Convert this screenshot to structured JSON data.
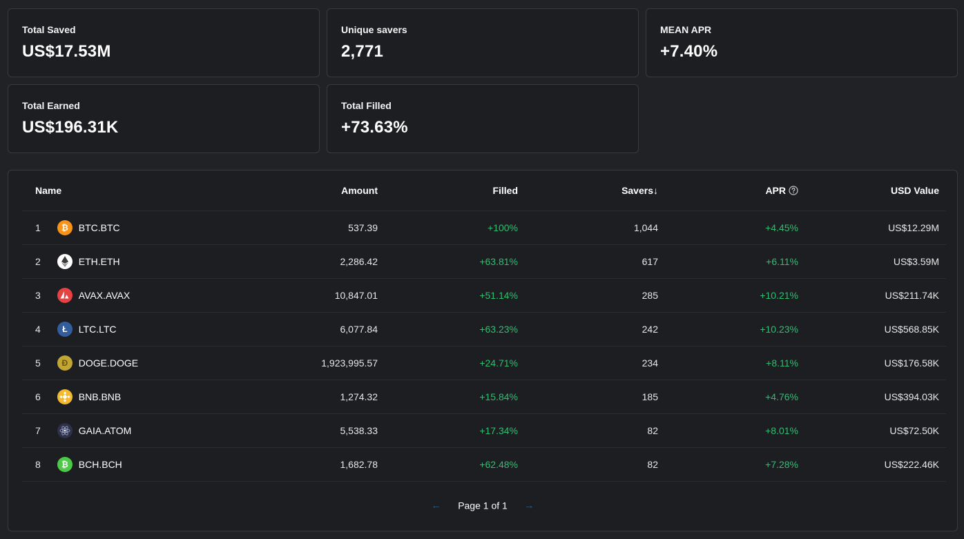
{
  "stats": {
    "total_saved": {
      "label": "Total Saved",
      "value": "US$17.53M"
    },
    "unique_savers": {
      "label": "Unique savers",
      "value": "2,771"
    },
    "mean_apr": {
      "label": "MEAN APR",
      "value": "+7.40%"
    },
    "total_earned": {
      "label": "Total Earned",
      "value": "US$196.31K"
    },
    "total_filled": {
      "label": "Total Filled",
      "value": "+73.63%"
    }
  },
  "table": {
    "headers": {
      "name": "Name",
      "amount": "Amount",
      "filled": "Filled",
      "savers": "Savers↓",
      "apr": "APR",
      "usd_value": "USD Value"
    },
    "rows": [
      {
        "rank": "1",
        "icon": "btc-icon",
        "name": "BTC.BTC",
        "amount": "537.39",
        "filled": "+100%",
        "savers": "1,044",
        "apr": "+4.45%",
        "usd": "US$12.29M"
      },
      {
        "rank": "2",
        "icon": "eth-icon",
        "name": "ETH.ETH",
        "amount": "2,286.42",
        "filled": "+63.81%",
        "savers": "617",
        "apr": "+6.11%",
        "usd": "US$3.59M"
      },
      {
        "rank": "3",
        "icon": "avax-icon",
        "name": "AVAX.AVAX",
        "amount": "10,847.01",
        "filled": "+51.14%",
        "savers": "285",
        "apr": "+10.21%",
        "usd": "US$211.74K"
      },
      {
        "rank": "4",
        "icon": "ltc-icon",
        "name": "LTC.LTC",
        "amount": "6,077.84",
        "filled": "+63.23%",
        "savers": "242",
        "apr": "+10.23%",
        "usd": "US$568.85K"
      },
      {
        "rank": "5",
        "icon": "doge-icon",
        "name": "DOGE.DOGE",
        "amount": "1,923,995.57",
        "filled": "+24.71%",
        "savers": "234",
        "apr": "+8.11%",
        "usd": "US$176.58K"
      },
      {
        "rank": "6",
        "icon": "bnb-icon",
        "name": "BNB.BNB",
        "amount": "1,274.32",
        "filled": "+15.84%",
        "savers": "185",
        "apr": "+4.76%",
        "usd": "US$394.03K"
      },
      {
        "rank": "7",
        "icon": "atom-icon",
        "name": "GAIA.ATOM",
        "amount": "5,538.33",
        "filled": "+17.34%",
        "savers": "82",
        "apr": "+8.01%",
        "usd": "US$72.50K"
      },
      {
        "rank": "8",
        "icon": "bch-icon",
        "name": "BCH.BCH",
        "amount": "1,682.78",
        "filled": "+62.48%",
        "savers": "82",
        "apr": "+7.28%",
        "usd": "US$222.46K"
      }
    ]
  },
  "pagination": {
    "label": "Page 1 of 1",
    "prev_icon": "arrow-left-icon",
    "next_icon": "arrow-right-icon"
  },
  "colors": {
    "positive": "#2fbf71",
    "background": "#212226",
    "card": "#1d1e22",
    "border": "#3a3b40"
  }
}
